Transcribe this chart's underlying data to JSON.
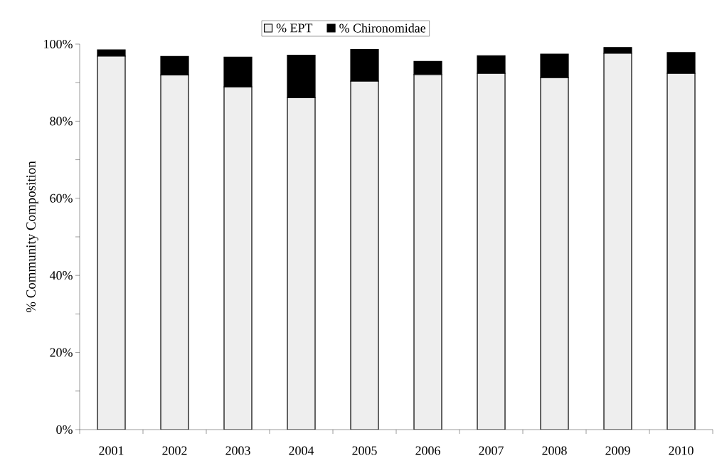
{
  "chart_data": {
    "type": "bar",
    "stacked": true,
    "ylabel": "% Community Composition",
    "categories": [
      "2001",
      "2002",
      "2003",
      "2004",
      "2005",
      "2006",
      "2007",
      "2008",
      "2009",
      "2010"
    ],
    "series": [
      {
        "name": "% EPT",
        "color": "#eeeeee",
        "values": [
          96.9,
          92.0,
          88.9,
          86.1,
          90.4,
          92.1,
          92.4,
          91.3,
          97.6,
          92.4
        ]
      },
      {
        "name": "% Chironomidae",
        "color": "#000000",
        "values": [
          1.6,
          4.8,
          7.7,
          11.0,
          8.2,
          3.4,
          4.6,
          6.1,
          1.5,
          5.4
        ]
      }
    ],
    "ylim": [
      0,
      100
    ],
    "yticks": [
      {
        "value": 0,
        "label": "0%"
      },
      {
        "value": 10,
        "label": null
      },
      {
        "value": 20,
        "label": "20%"
      },
      {
        "value": 30,
        "label": null
      },
      {
        "value": 40,
        "label": "40%"
      },
      {
        "value": 50,
        "label": null
      },
      {
        "value": 60,
        "label": "60%"
      },
      {
        "value": 70,
        "label": null
      },
      {
        "value": 80,
        "label": "80%"
      },
      {
        "value": 90,
        "label": null
      },
      {
        "value": 100,
        "label": "100%"
      }
    ],
    "grid": false,
    "legend": "top"
  }
}
